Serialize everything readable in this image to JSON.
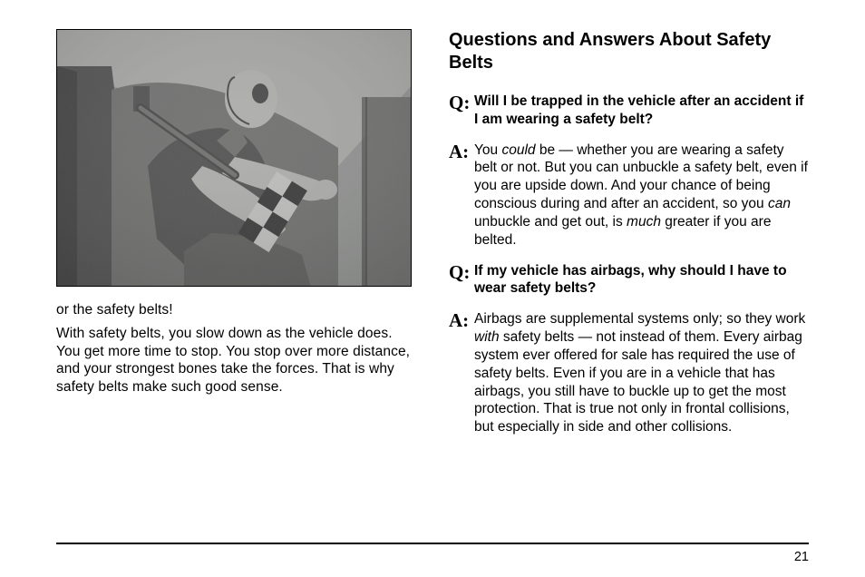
{
  "page_number": "21",
  "left": {
    "caption_line1": "or the safety belts!",
    "caption_para": "With safety belts, you slow down as the vehicle does. You get more time to stop. You stop over more distance, and your strongest bones take the forces. That is why safety belts make such good sense."
  },
  "right": {
    "heading": "Questions and Answers About Safety Belts",
    "qa": [
      {
        "q": "Will I be trapped in the vehicle after an accident if I am wearing a safety belt?",
        "a_parts": [
          {
            "t": "You "
          },
          {
            "t": "could",
            "i": true
          },
          {
            "t": " be — whether you are wearing a safety belt or not. But you can unbuckle a safety belt, even if you are upside down. And your chance of being conscious during and after an accident, so you "
          },
          {
            "t": "can",
            "i": true
          },
          {
            "t": " unbuckle and get out, is "
          },
          {
            "t": "much",
            "i": true
          },
          {
            "t": " greater if you are belted."
          }
        ]
      },
      {
        "q": "If my vehicle has airbags, why should I have to wear safety belts?",
        "a_parts": [
          {
            "t": "Airbags are supplemental systems only; so they work "
          },
          {
            "t": "with",
            "i": true
          },
          {
            "t": " safety belts — not instead of them. Every airbag system ever offered for sale has required the use of safety belts. Even if you are in a vehicle that has airbags, you still have to buckle up to get the most protection. That is true not only in frontal collisions, but especially in side and other collisions."
          }
        ]
      }
    ]
  },
  "photo": {
    "bg": "#a9aba9",
    "dark": "#3b3b3b",
    "mid": "#6e6f6d",
    "light": "#d8d8d6",
    "white": "#f5f5f4"
  }
}
